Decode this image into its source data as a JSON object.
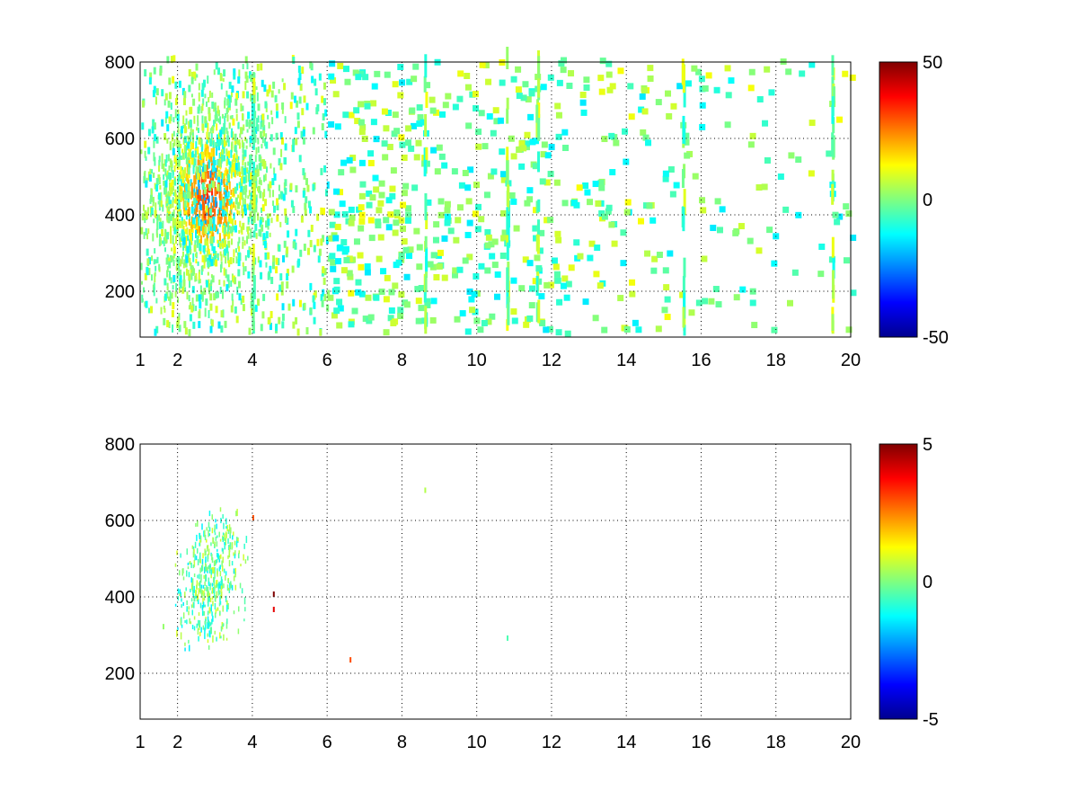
{
  "chart_data": [
    {
      "type": "heatmap",
      "name": "top-panel",
      "xlim": [
        1,
        20
      ],
      "ylim": [
        80,
        800
      ],
      "x_ticks": [
        1,
        2,
        4,
        6,
        8,
        10,
        12,
        14,
        16,
        18,
        20
      ],
      "x_tick_labels": [
        "1",
        "2",
        "4",
        "6",
        "8",
        "10",
        "12",
        "14",
        "16",
        "18",
        "20"
      ],
      "y_ticks": [
        200,
        400,
        600,
        800
      ],
      "y_tick_labels": [
        "200",
        "400",
        "600",
        "800"
      ],
      "grid": true,
      "colormap": "jet",
      "clim": [
        -50,
        50
      ],
      "colorbar_ticks": [
        50,
        0,
        -50
      ],
      "colorbar_tick_labels": [
        "50",
        "0",
        "-50"
      ],
      "title": "",
      "xlabel": "",
      "ylabel": "",
      "features": {
        "cluster_center": [
          2.8,
          440
        ],
        "cluster_peak_value": 30,
        "cluster_value_range": [
          -20,
          35
        ],
        "scattered_value_range": [
          -15,
          12
        ],
        "strong_columns_x": [
          4.0,
          8.6,
          10.8,
          11.6,
          15.5,
          19.5
        ]
      }
    },
    {
      "type": "heatmap",
      "name": "bottom-panel",
      "xlim": [
        1,
        20
      ],
      "ylim": [
        80,
        800
      ],
      "x_ticks": [
        1,
        2,
        4,
        6,
        8,
        10,
        12,
        14,
        16,
        18,
        20
      ],
      "x_tick_labels": [
        "1",
        "2",
        "4",
        "6",
        "8",
        "10",
        "12",
        "14",
        "16",
        "18",
        "20"
      ],
      "y_ticks": [
        200,
        400,
        600,
        800
      ],
      "y_tick_labels": [
        "200",
        "400",
        "600",
        "800"
      ],
      "grid": true,
      "colormap": "jet",
      "clim": [
        -5,
        5
      ],
      "colorbar_ticks": [
        5,
        0,
        -5
      ],
      "colorbar_tick_labels": [
        "5",
        "0",
        "-5"
      ],
      "title": "",
      "xlabel": "",
      "ylabel": "",
      "features": {
        "cluster_center": [
          2.9,
          430
        ],
        "cluster_value_range": [
          -1.5,
          1.0
        ],
        "isolated_points": [
          {
            "x": 1.6,
            "y": 315,
            "v": 0.2
          },
          {
            "x": 4.55,
            "y": 400,
            "v": 5
          },
          {
            "x": 4.55,
            "y": 360,
            "v": 4
          },
          {
            "x": 6.6,
            "y": 228,
            "v": 3
          },
          {
            "x": 8.6,
            "y": 672,
            "v": 0.5
          },
          {
            "x": 10.8,
            "y": 285,
            "v": -0.5
          },
          {
            "x": 4.0,
            "y": 600,
            "v": 3
          }
        ]
      }
    }
  ]
}
